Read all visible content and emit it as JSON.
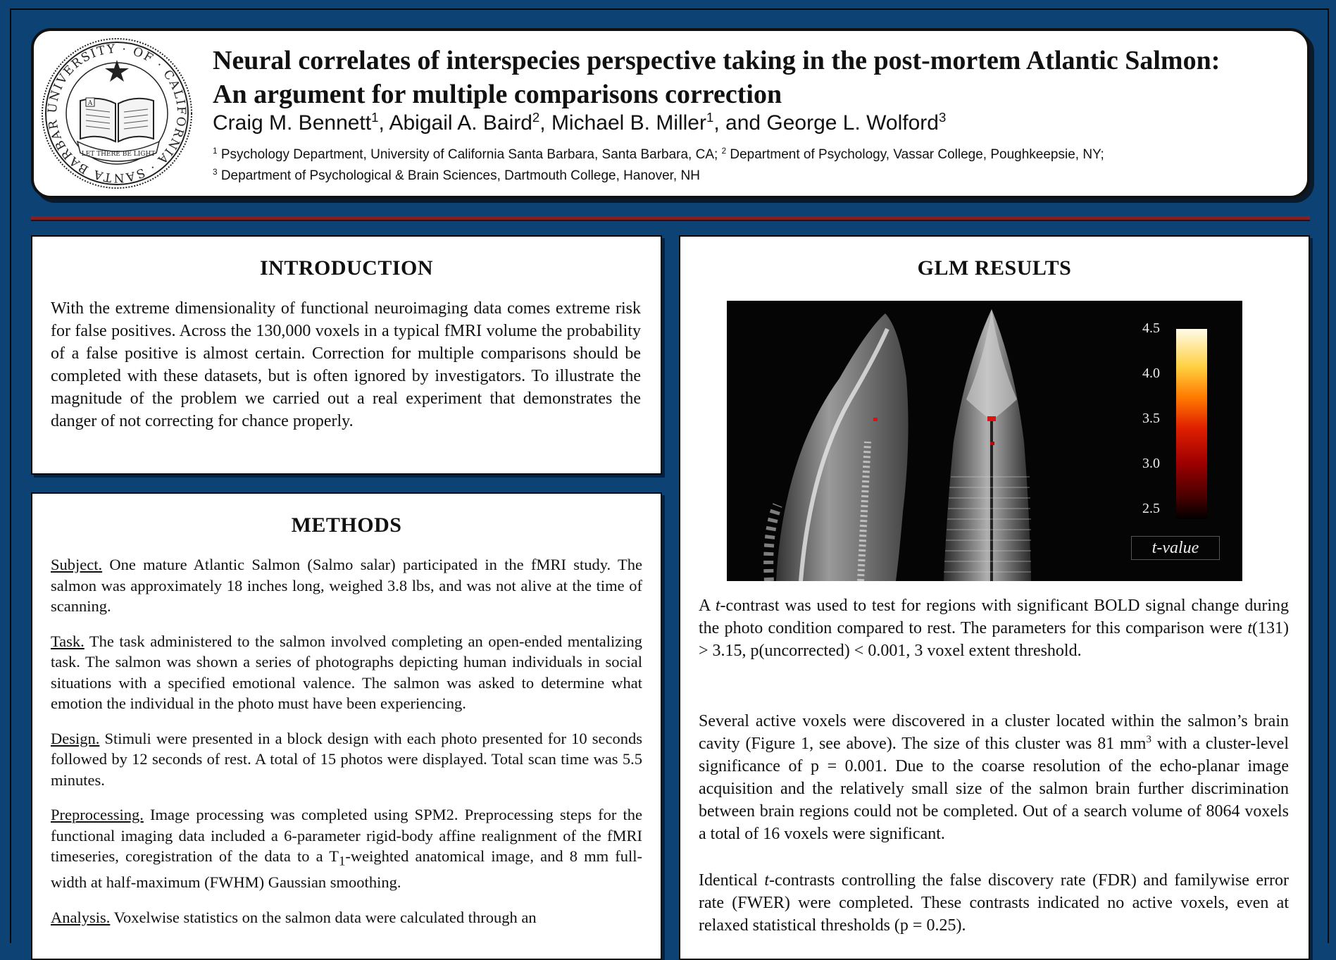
{
  "header": {
    "seal": {
      "ring_text": "UNIVERSITY · OF · CALIFORNIA · SANTA BARBARA",
      "motto": "LET THERE BE LIGHT",
      "book_letter": "A"
    },
    "title_line1": "Neural correlates of interspecies perspective taking in the post-mortem Atlantic Salmon:",
    "title_line2": "An argument for multiple comparisons correction",
    "authors": [
      {
        "name": "Craig M. Bennett",
        "sup": "1",
        "sep": ", "
      },
      {
        "name": "Abigail A. Baird",
        "sup": "2",
        "sep": ", "
      },
      {
        "name": "Michael B. Miller",
        "sup": "1",
        "sep": ", and "
      },
      {
        "name": "George L. Wolford",
        "sup": "3",
        "sep": ""
      }
    ],
    "affil_line1": {
      "sup1": "1",
      "text1": " Psychology Department, University of California Santa Barbara, Santa Barbara, CA; ",
      "sup2": "2",
      "text2": " Department of Psychology, Vassar College, Poughkeepsie, NY;"
    },
    "affil_line2": {
      "sup": "3",
      "text": " Department of Psychological & Brain Sciences, Dartmouth College, Hanover, NH"
    }
  },
  "introduction": {
    "heading": "INTRODUCTION",
    "text": "With the extreme dimensionality of functional neuroimaging data comes extreme risk for false positives.  Across the 130,000 voxels in a typical fMRI volume the probability of a false positive is almost certain.  Correction for multiple comparisons should be completed with these datasets, but is often ignored by investigators. To illustrate the magnitude of the problem we carried out a real experiment that demonstrates the danger of not correcting for chance properly."
  },
  "methods": {
    "heading": "METHODS",
    "subject": {
      "label": "Subject.",
      "text": " One mature Atlantic Salmon (Salmo salar) participated in the fMRI study.  The salmon was approximately 18 inches long, weighed 3.8 lbs, and was not alive at the time of scanning."
    },
    "task": {
      "label": "Task.",
      "text": " The task administered to the salmon involved completing an open-ended mentalizing task.  The salmon was shown a series of photographs depicting human individuals in social situations with a specified emotional valence.  The salmon was asked to determine what emotion the individual in the photo must have been experiencing."
    },
    "design": {
      "label": "Design.",
      "text": " Stimuli were presented in a block design with each photo presented for 10 seconds followed by 12 seconds of rest.  A total of 15 photos were displayed.  Total scan time was 5.5 minutes."
    },
    "preprocessing": {
      "label": "Preprocessing.",
      "text_a": " Image processing was completed using SPM2.  Preprocessing steps for the functional imaging data included a 6-parameter rigid-body affine realignment of the fMRI timeseries, coregistration of the data to a T",
      "sub": "1",
      "text_b": "-weighted anatomical image, and 8 mm full-width at half-maximum (FWHM) Gaussian smoothing."
    },
    "analysis": {
      "label": "Analysis.",
      "text": " Voxelwise statistics on the salmon data were calculated through an"
    }
  },
  "glm": {
    "heading": "GLM RESULTS",
    "figure": {
      "colorbar_ticks": [
        "4.5",
        "4.0",
        "3.5",
        "3.0",
        "2.5"
      ],
      "colorbar_label": "t-value"
    },
    "p1": {
      "a": "A ",
      "t": "t",
      "b": "-contrast was used to test for regions with significant BOLD signal change during the photo condition compared to rest.   The parameters for this comparison were ",
      "t2": "t",
      "c": "(131) > 3.15, p(uncorrected) < 0.001, 3 voxel extent threshold."
    },
    "p2": {
      "a": "Several active voxels were discovered in a cluster located within the salmon’s brain cavity (Figure 1, see above).  The size of this cluster was 81 mm",
      "sup": "3",
      "b": " with a cluster-level significance of p = 0.001.  Due to the coarse resolution of the echo-planar image acquisition and the relatively small size of the salmon brain further discrimination between brain regions could not be completed.  Out of a search volume of 8064 voxels a total of 16 voxels were significant."
    },
    "p3": {
      "a": "Identical ",
      "t": "t",
      "b": "-contrasts controlling the false discovery rate (FDR) and familywise error rate (FWER) were completed.   These contrasts indicated no active voxels, even at relaxed statistical thresholds (p = 0.25)."
    }
  }
}
